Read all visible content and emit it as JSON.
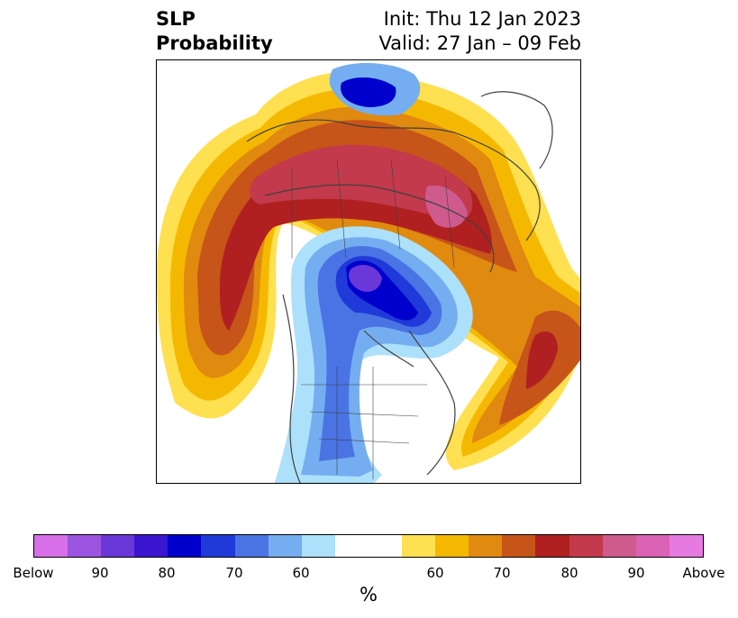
{
  "title": {
    "left_line1": "SLP",
    "left_line2": "Probability",
    "right_line1": "Init: Thu 12 Jan 2023",
    "right_line2": "Valid: 27 Jan – 09 Feb"
  },
  "colorbar": {
    "unit": "%",
    "colors": [
      "#d66fe8",
      "#9b55e0",
      "#6a37d8",
      "#3a16d0",
      "#0000cc",
      "#1f3ad8",
      "#4a74e4",
      "#74aef0",
      "#ade0fb",
      "#ffffff",
      "#ffe050",
      "#f5b800",
      "#e08a10",
      "#c75418",
      "#b02020",
      "#c23a4c",
      "#cf5a8e",
      "#db62b4",
      "#e77ae0"
    ],
    "tick_labels": [
      "Below",
      "90",
      "80",
      "70",
      "60",
      "60",
      "70",
      "80",
      "90",
      "Above"
    ]
  }
}
